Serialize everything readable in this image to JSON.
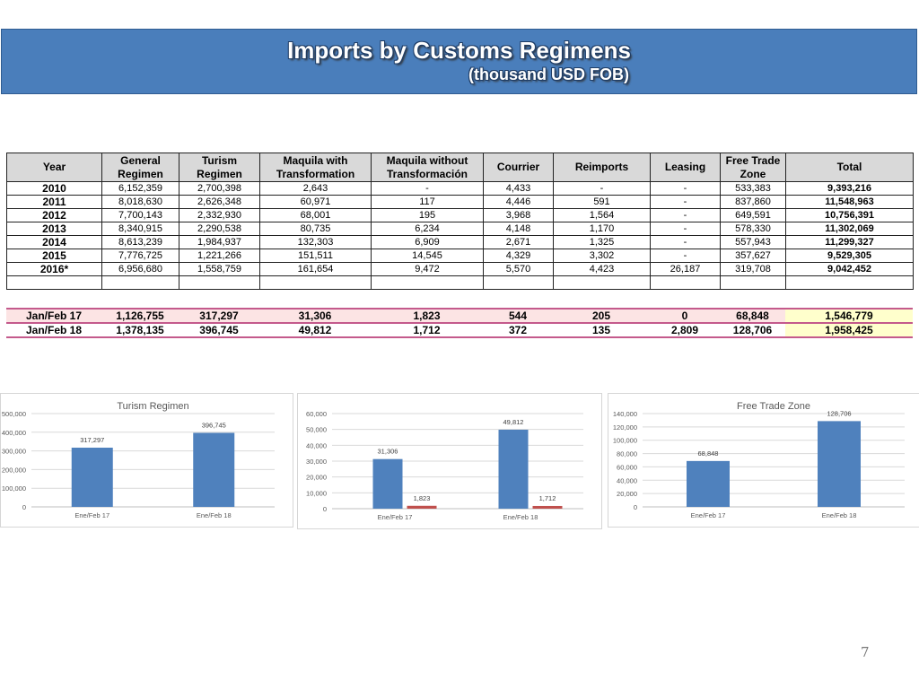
{
  "header": {
    "title": "Imports by Customs Regimens",
    "subtitle": "(thousand USD FOB)"
  },
  "table": {
    "headers": [
      [
        "Year"
      ],
      [
        "General",
        "Regimen"
      ],
      [
        "Turism",
        "Regimen"
      ],
      [
        "Maquila with",
        "Transformation"
      ],
      [
        "Maquila without",
        "Transformación"
      ],
      [
        "Courrier"
      ],
      [
        "Reimports"
      ],
      [
        "Leasing"
      ],
      [
        "Free Trade",
        "Zone"
      ],
      [
        "Total"
      ]
    ],
    "rows": [
      [
        "2010",
        "6,152,359",
        "2,700,398",
        "2,643",
        "-",
        "4,433",
        "-",
        "-",
        "533,383",
        "9,393,216"
      ],
      [
        "2011",
        "8,018,630",
        "2,626,348",
        "60,971",
        "117",
        "4,446",
        "591",
        "-",
        "837,860",
        "11,548,963"
      ],
      [
        "2012",
        "7,700,143",
        "2,332,930",
        "68,001",
        "195",
        "3,968",
        "1,564",
        "-",
        "649,591",
        "10,756,391"
      ],
      [
        "2013",
        "8,340,915",
        "2,290,538",
        "80,735",
        "6,234",
        "4,148",
        "1,170",
        "-",
        "578,330",
        "11,302,069"
      ],
      [
        "2014",
        "8,613,239",
        "1,984,937",
        "132,303",
        "6,909",
        "2,671",
        "1,325",
        "-",
        "557,943",
        "11,299,327"
      ],
      [
        "2015",
        "7,776,725",
        "1,221,266",
        "151,511",
        "14,545",
        "4,329",
        "3,302",
        "-",
        "357,627",
        "9,529,305"
      ],
      [
        "2016*",
        "6,956,680",
        "1,558,759",
        "161,654",
        "9,472",
        "5,570",
        "4,423",
        "26,187",
        "319,708",
        "9,042,452"
      ]
    ],
    "ytd_rows": [
      [
        "Jan/Feb 17",
        "1,126,755",
        "317,297",
        "31,306",
        "1,823",
        "544",
        "205",
        "0",
        "68,848",
        "1,546,779"
      ],
      [
        "Jan/Feb 18",
        "1,378,135",
        "396,745",
        "49,812",
        "1,712",
        "372",
        "135",
        "2,809",
        "128,706",
        "1,958,425"
      ]
    ]
  },
  "colors": {
    "banner": "#4a7ebb",
    "bar_blue": "#4f81bd",
    "bar_red": "#c0504d",
    "ytd_line": "#c45a8c"
  },
  "chart_data": [
    {
      "type": "bar",
      "title": "Turism Regimen",
      "categories": [
        "Ene/Feb 17",
        "Ene/Feb 18"
      ],
      "series": [
        {
          "values": [
            317297,
            396745
          ],
          "labels": [
            "317,297",
            "396,745"
          ]
        }
      ],
      "ylim": [
        0,
        500000
      ],
      "yticks": [
        "0",
        "100,000",
        "200,000",
        "300,000",
        "400,000",
        "500,000"
      ],
      "grid": true
    },
    {
      "type": "bar",
      "title": "",
      "categories": [
        "Ene/Feb 17",
        "Ene/Feb 18"
      ],
      "series": [
        {
          "values": [
            31306,
            49812
          ],
          "labels": [
            "31,306",
            "49,812"
          ]
        },
        {
          "values": [
            1823,
            1712
          ],
          "labels": [
            "1,823",
            "1,712"
          ]
        }
      ],
      "ylim": [
        0,
        60000
      ],
      "yticks": [
        "0",
        "10,000",
        "20,000",
        "30,000",
        "40,000",
        "50,000",
        "60,000"
      ],
      "grid": true
    },
    {
      "type": "bar",
      "title": "Free Trade Zone",
      "categories": [
        "Ene/Feb 17",
        "Ene/Feb 18"
      ],
      "series": [
        {
          "values": [
            68848,
            128706
          ],
          "labels": [
            "68,848",
            "128,706"
          ]
        }
      ],
      "ylim": [
        0,
        140000
      ],
      "yticks": [
        "0",
        "20,000",
        "40,000",
        "60,000",
        "80,000",
        "100,000",
        "120,000",
        "140,000"
      ],
      "grid": true
    }
  ],
  "page_number": "7"
}
